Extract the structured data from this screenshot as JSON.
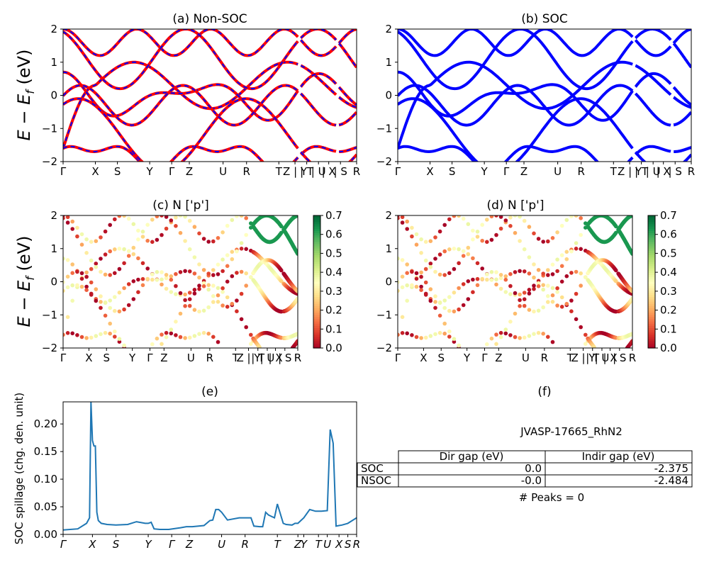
{
  "figure": {
    "band_ylabel_main": "E − E",
    "band_ylabel_sub": "f",
    "band_ylabel_unit": " (eV)",
    "spillage_ylabel": "SOC spillage (chg. den. unit)"
  },
  "chart_data": [
    {
      "id": "a",
      "type": "line",
      "title": "(a) Non-SOC",
      "ylim": [
        -2,
        2
      ],
      "yticks": [
        "2",
        "1",
        "0",
        "−1",
        "−2"
      ],
      "xticks": [
        "Γ",
        "X",
        "S",
        "Y",
        "Γ",
        "Z",
        "U",
        "R",
        "T",
        "Z | Y",
        "| T",
        "| U",
        "| X",
        "| S",
        "R"
      ],
      "series": [
        {
          "color": "#ff0000",
          "values_at_ticks": [
            [
              -1.5,
              -0.3,
              0.4,
              0.7,
              -1.3,
              -1.7,
              -0.3,
              0.1,
              -0.8,
              -0.7
            ]
          ]
        },
        {
          "color": "#0000ff",
          "style": "dashed",
          "values_at_ticks": [
            [
              -1.5,
              -0.3,
              0.4,
              0.7,
              -1.3,
              -1.7,
              -0.3,
              0.1,
              -0.8,
              -0.7
            ]
          ]
        }
      ],
      "grid": false
    },
    {
      "id": "b",
      "type": "line",
      "title": "(b) SOC",
      "ylim": [
        -2,
        2
      ],
      "yticks": [
        "2",
        "1",
        "0",
        "−1",
        "−2"
      ],
      "xticks": [
        "Γ",
        "X",
        "S",
        "Y",
        "Γ",
        "Z",
        "U",
        "R",
        "T",
        "Z | Y",
        "| T",
        "| U",
        "| X",
        "| S",
        "R"
      ],
      "series": [
        {
          "color": "#0000ff"
        }
      ],
      "grid": false
    },
    {
      "id": "c",
      "type": "scatter",
      "title": "(c)  N ['p']",
      "ylim": [
        -2,
        2
      ],
      "yticks": [
        "2",
        "1",
        "0",
        "−1",
        "−2"
      ],
      "xticks": [
        "Γ",
        "X",
        "S",
        "Y",
        "Γ",
        "Z",
        "U",
        "R",
        "T",
        "Z | Y",
        "| T",
        "| U",
        "| X",
        "| S",
        "R"
      ],
      "colorbar": {
        "range": [
          0.0,
          0.7
        ],
        "ticks": [
          "0.7",
          "0.6",
          "0.5",
          "0.4",
          "0.3",
          "0.2",
          "0.1",
          "0.0"
        ],
        "colormap": "RdYlGn"
      }
    },
    {
      "id": "d",
      "type": "scatter",
      "title": "(d) N ['p']",
      "ylim": [
        -2,
        2
      ],
      "yticks": [
        "2",
        "1",
        "0",
        "−1",
        "−2"
      ],
      "xticks": [
        "Γ",
        "X",
        "S",
        "Y",
        "Γ",
        "Z",
        "U",
        "R",
        "T",
        "Z | Y",
        "| T",
        "| U",
        "| X",
        "| S",
        "R"
      ],
      "colorbar": {
        "range": [
          0.0,
          0.7
        ],
        "ticks": [
          "0.7",
          "0.6",
          "0.5",
          "0.4",
          "0.3",
          "0.2",
          "0.1",
          "0.0"
        ],
        "colormap": "RdYlGn"
      }
    },
    {
      "id": "e",
      "type": "line",
      "title": "(e)",
      "ylim": [
        0,
        0.24
      ],
      "yticks": [
        "0.20",
        "0.15",
        "0.10",
        "0.05",
        "0.00"
      ],
      "xticks": [
        "Γ",
        "X",
        "S",
        "Y",
        "Γ",
        "Z",
        "U",
        "R",
        "T",
        "Z",
        "Y",
        "T",
        "U",
        "X",
        "S",
        "R"
      ],
      "series": [
        {
          "color": "#1f77b4",
          "x": [
            0,
            0.05,
            0.08,
            0.09,
            0.095,
            0.1,
            0.105,
            0.11,
            0.115,
            0.12,
            0.13,
            0.15,
            0.18,
            0.22,
            0.25,
            0.28,
            0.29,
            0.3,
            0.31,
            0.33,
            0.36,
            0.4,
            0.42,
            0.44,
            0.48,
            0.5,
            0.51,
            0.52,
            0.53,
            0.54,
            0.56,
            0.6,
            0.62,
            0.64,
            0.65,
            0.67,
            0.68,
            0.69,
            0.7,
            0.72,
            0.73,
            0.75,
            0.76,
            0.78,
            0.79,
            0.8,
            0.81,
            0.82,
            0.84,
            0.86,
            0.88,
            0.9,
            0.91,
            0.92,
            0.93,
            0.94,
            0.95,
            0.97,
            1.0
          ],
          "y": [
            0.008,
            0.01,
            0.02,
            0.03,
            0.24,
            0.17,
            0.16,
            0.16,
            0.04,
            0.025,
            0.02,
            0.018,
            0.017,
            0.018,
            0.023,
            0.02,
            0.02,
            0.022,
            0.01,
            0.009,
            0.009,
            0.012,
            0.014,
            0.014,
            0.016,
            0.025,
            0.026,
            0.045,
            0.045,
            0.04,
            0.026,
            0.03,
            0.03,
            0.03,
            0.015,
            0.014,
            0.014,
            0.04,
            0.035,
            0.03,
            0.055,
            0.02,
            0.018,
            0.017,
            0.02,
            0.02,
            0.025,
            0.03,
            0.045,
            0.042,
            0.042,
            0.043,
            0.19,
            0.165,
            0.015,
            0.016,
            0.017,
            0.02,
            0.03
          ]
        }
      ],
      "grid": false
    },
    {
      "id": "f",
      "type": "table",
      "title": "(f)",
      "material_label": "JVASP-17665_RhN2",
      "columns": [
        "Dir gap (eV)",
        "Indir gap (eV)"
      ],
      "rows": [
        {
          "label": "SOC",
          "values": [
            "0.0",
            "-2.375"
          ]
        },
        {
          "label": "NSOC",
          "values": [
            "-0.0",
            "-2.484"
          ]
        }
      ],
      "footer": "# Peaks = 0"
    }
  ]
}
